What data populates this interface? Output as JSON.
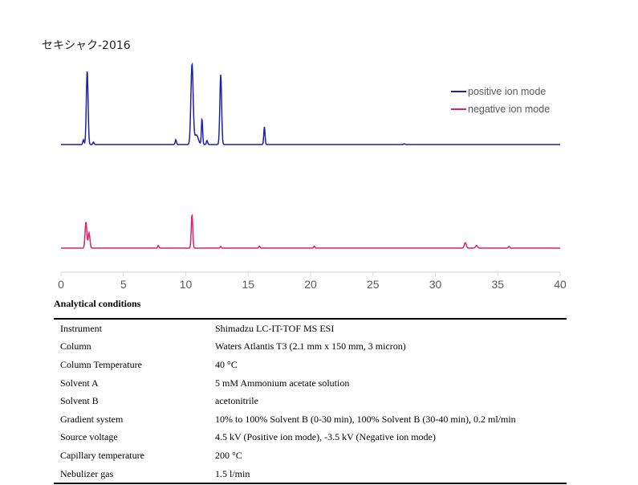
{
  "chart_data": {
    "type": "line",
    "title": "セキシャク-2016",
    "xlim": [
      0,
      40
    ],
    "x_ticks": [
      0,
      5,
      10,
      15,
      20,
      25,
      30,
      35,
      40
    ],
    "grid": false,
    "legend_position": "top-right",
    "series": [
      {
        "name": "positive ion mode",
        "color": "#1f1fa8",
        "peaks": [
          {
            "rt": 1.8,
            "height": 0.06,
            "width": 0.05
          },
          {
            "rt": 2.1,
            "height": 0.92,
            "width": 0.07
          },
          {
            "rt": 2.6,
            "height": 0.03,
            "width": 0.05
          },
          {
            "rt": 9.2,
            "height": 0.06,
            "width": 0.05
          },
          {
            "rt": 10.5,
            "height": 1.0,
            "width": 0.09
          },
          {
            "rt": 10.85,
            "height": 0.12,
            "width": 0.15
          },
          {
            "rt": 11.3,
            "height": 0.32,
            "width": 0.05
          },
          {
            "rt": 11.7,
            "height": 0.05,
            "width": 0.05
          },
          {
            "rt": 12.8,
            "height": 0.87,
            "width": 0.07
          },
          {
            "rt": 16.3,
            "height": 0.22,
            "width": 0.05
          },
          {
            "rt": 27.5,
            "height": 0.01,
            "width": 0.05
          }
        ]
      },
      {
        "name": "negative ion mode",
        "color": "#d6246e",
        "peaks": [
          {
            "rt": 2.0,
            "height": 0.78,
            "width": 0.07
          },
          {
            "rt": 2.25,
            "height": 0.45,
            "width": 0.07
          },
          {
            "rt": 7.8,
            "height": 0.08,
            "width": 0.05
          },
          {
            "rt": 10.5,
            "height": 1.0,
            "width": 0.06
          },
          {
            "rt": 12.8,
            "height": 0.05,
            "width": 0.05
          },
          {
            "rt": 15.9,
            "height": 0.06,
            "width": 0.05
          },
          {
            "rt": 20.3,
            "height": 0.06,
            "width": 0.05
          },
          {
            "rt": 32.4,
            "height": 0.16,
            "width": 0.08
          },
          {
            "rt": 33.3,
            "height": 0.08,
            "width": 0.08
          },
          {
            "rt": 35.9,
            "height": 0.05,
            "width": 0.06
          }
        ]
      }
    ]
  },
  "conditions": {
    "heading": "Analytical conditions",
    "rows": [
      {
        "key": "Instrument",
        "value": "Shimadzu LC-IT-TOF MS ESI"
      },
      {
        "key": "Column",
        "value": "Waters Atlantis T3 (2.1 mm x 150 mm, 3 micron)"
      },
      {
        "key": "Column Temperature",
        "value": "40 °C"
      },
      {
        "key": "Solvent A",
        "value": "5 mM Ammonium acetate solution"
      },
      {
        "key": "Solvent B",
        "value": "acetonitrile"
      },
      {
        "key": "Gradient system",
        "value": "10% to 100% Solvent B (0-30 min), 100% Solvent B (30-40 min), 0.2 ml/min"
      },
      {
        "key": "Source voltage",
        "value": "4.5 kV (Positive ion mode), -3.5 kV (Negative ion mode)"
      },
      {
        "key": "Capillary temperature",
        "value": "200 °C"
      },
      {
        "key": "Nebulizer gas",
        "value": "1.5 l/min"
      }
    ]
  }
}
